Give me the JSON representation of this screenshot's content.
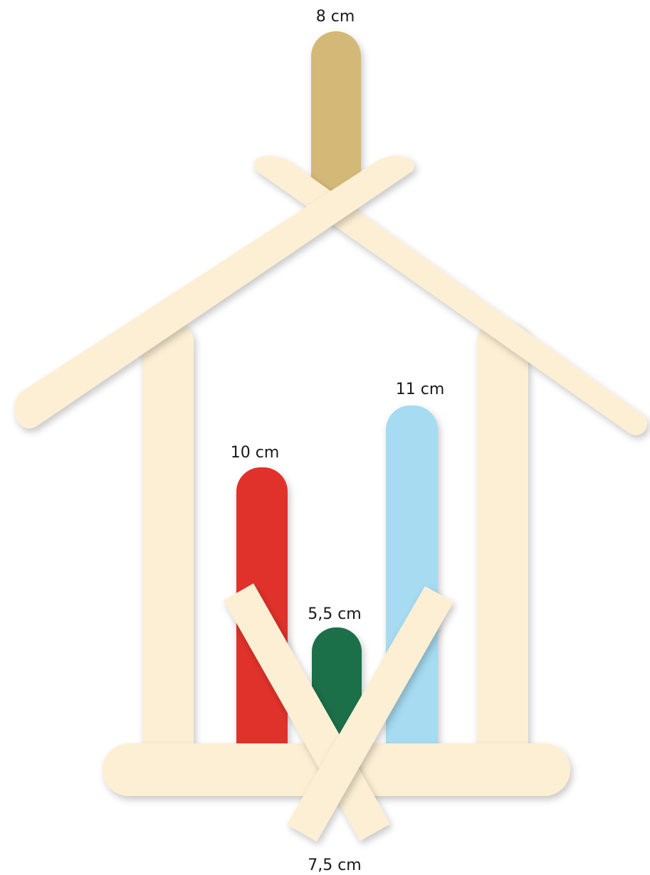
{
  "colors": {
    "stick": "#FCEFD4",
    "stick_top": "#D4B877",
    "stick_red": "#E0302C",
    "stick_green": "#1C7048",
    "stick_blue": "#A6DBF1",
    "text": "#1a1a1a"
  },
  "labels": {
    "top_stick": "8 cm",
    "red_stick": "10 cm",
    "green_stick": "5,5 cm",
    "blue_stick": "11 cm",
    "crossed_sticks": "7,5 cm"
  }
}
